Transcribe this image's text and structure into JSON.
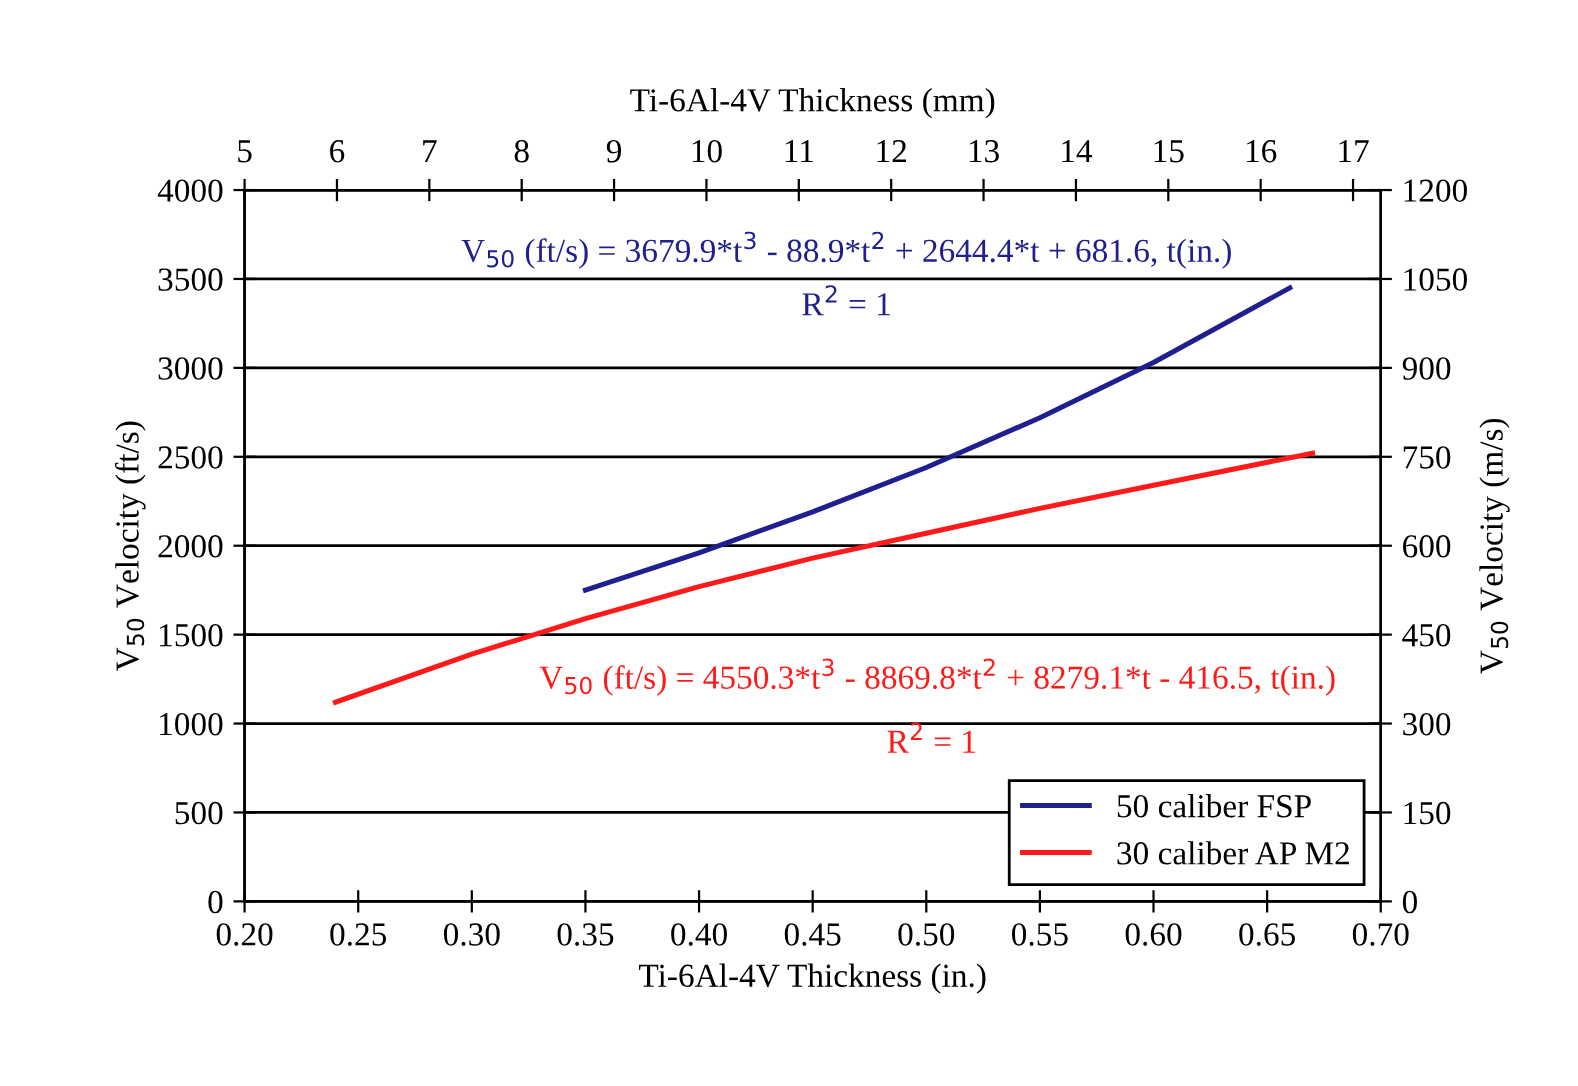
{
  "chart_data": {
    "type": "line",
    "xlabel": "Ti-6Al-4V Thickness (in.)",
    "ylabel": "V$_{50}$ Velocity (ft/s)",
    "y2label": "V$_{50}$ Velocity (m/s)",
    "x2label": "Ti-6Al-4V Thickness (mm)",
    "xlim": [
      0.2,
      0.7
    ],
    "xticks": [
      {
        "value": 0.2,
        "label": "0.20"
      },
      {
        "value": 0.25,
        "label": "0.25"
      },
      {
        "value": 0.3,
        "label": "0.30"
      },
      {
        "value": 0.35,
        "label": "0.35"
      },
      {
        "value": 0.4,
        "label": "0.40"
      },
      {
        "value": 0.45,
        "label": "0.45"
      },
      {
        "value": 0.5,
        "label": "0.50"
      },
      {
        "value": 0.55,
        "label": "0.55"
      },
      {
        "value": 0.6,
        "label": "0.60"
      },
      {
        "value": 0.65,
        "label": "0.65"
      },
      {
        "value": 0.7,
        "label": "0.70"
      }
    ],
    "x2lim": [
      5,
      17.3
    ],
    "x2ticks": [
      5,
      6,
      7,
      8,
      9,
      10,
      11,
      12,
      13,
      14,
      15,
      16,
      17
    ],
    "ylim": [
      0,
      4000
    ],
    "yticks": [
      0,
      500,
      1000,
      1500,
      2000,
      2500,
      3000,
      3500,
      4000
    ],
    "y2lim": [
      0,
      1200
    ],
    "y2ticks": [
      0,
      150,
      300,
      450,
      600,
      750,
      900,
      1050,
      1200
    ],
    "grid": "y",
    "legend": "lower right",
    "marker": "none",
    "line_style": "solid",
    "series": [
      {
        "name": "50 caliber FSP",
        "color": "#1f1f8f",
        "x": [
          0.35,
          0.4,
          0.45,
          0.5,
          0.55,
          0.6,
          0.66
        ],
        "values": [
          1750,
          1960,
          2190,
          2440,
          2720,
          3030,
          3450
        ]
      },
      {
        "name": "30 caliber AP M2",
        "color": "#ff1a1a",
        "x": [
          0.24,
          0.3,
          0.35,
          0.4,
          0.45,
          0.5,
          0.55,
          0.6,
          0.67
        ],
        "values": [
          1120,
          1390,
          1590,
          1770,
          1930,
          2070,
          2210,
          2340,
          2520
        ]
      }
    ],
    "annotations": [
      "V$_{50}$ (ft/s) = 3679.9*t$^{3}$ - 88.9*t$^{2}$ + 2644.4*t + 681.6, t(in.)",
      "R$^{2}$ = 1",
      "V$_{50}$ (ft/s) = 4550.3*t$^{3}$ - 8869.8*t$^{2}$ + 8279.1*t - 416.5, t(in.)",
      "R$^{2}$ = 1"
    ]
  }
}
